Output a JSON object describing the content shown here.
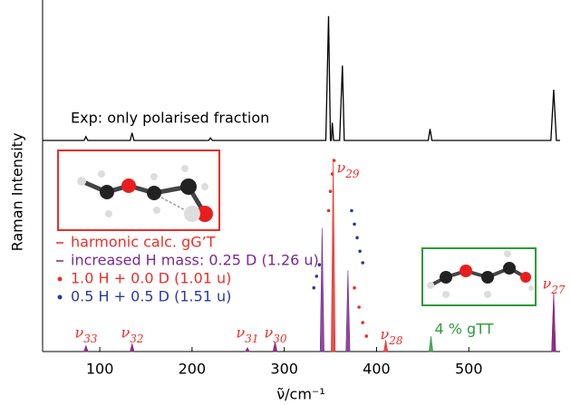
{
  "chart_data": [
    {
      "type": "line",
      "label": "Exp: only polarised fraction",
      "color": "#000000",
      "xlim": [
        38,
        599
      ],
      "ylim": [
        0,
        100
      ],
      "x": [
        38,
        83,
        85,
        87,
        133,
        135,
        137,
        218,
        220,
        222,
        345,
        348,
        350,
        351,
        352,
        353.5,
        360,
        363,
        365,
        456,
        458,
        460,
        589,
        592,
        595,
        599
      ],
      "values": [
        0,
        0,
        3,
        0,
        0,
        6,
        0,
        0,
        2,
        0,
        0,
        98,
        0,
        0,
        14,
        0,
        0,
        59,
        0,
        0,
        9,
        0,
        0,
        40,
        0,
        0
      ]
    },
    {
      "type": "stem",
      "xlim": [
        38,
        599
      ],
      "ylim": [
        0,
        100
      ],
      "xticks": [
        100,
        200,
        300,
        400,
        500
      ],
      "xlabel": "ν̃/cm⁻¹",
      "ylabel": "Raman Intensity",
      "series": [
        {
          "name": "harmonic calc. gG’T",
          "color": "#e8302a",
          "marker": "line",
          "x": [
            85,
            135,
            260,
            290,
            353,
            410,
            592
          ],
          "values": [
            3,
            4,
            2,
            5,
            100,
            6,
            30
          ]
        },
        {
          "name": "increased H mass: 0.25 D (1.26 u)",
          "color": "#7a2a8c",
          "marker": "line",
          "x": [
            85,
            135,
            260,
            290,
            341,
            369,
            592
          ],
          "values": [
            3,
            4,
            2,
            5,
            64,
            42,
            30
          ]
        },
        {
          "name": "1.0 H + 0.0 D (1.01 u)",
          "color": "#e8302a",
          "marker": "dot",
          "x": [
            348,
            350,
            352,
            354,
            376,
            381,
            385,
            389
          ],
          "values": [
            73,
            83,
            92,
            99,
            33,
            23,
            15,
            8
          ]
        },
        {
          "name": "0.5 H + 0.5 D (1.51 u)",
          "color": "#2b3a9a",
          "marker": "dot",
          "x": [
            332,
            335,
            338,
            373,
            376,
            379,
            382,
            385
          ],
          "values": [
            33,
            39,
            45,
            73,
            66,
            59,
            52,
            46
          ]
        },
        {
          "name": "4 % gTT",
          "color": "#2e9a3a",
          "marker": "line",
          "x": [
            459
          ],
          "values": [
            8
          ]
        }
      ],
      "annotations": [
        "ν33",
        "ν32",
        "ν31",
        "ν30",
        "ν29",
        "ν28",
        "ν27"
      ]
    }
  ]
}
